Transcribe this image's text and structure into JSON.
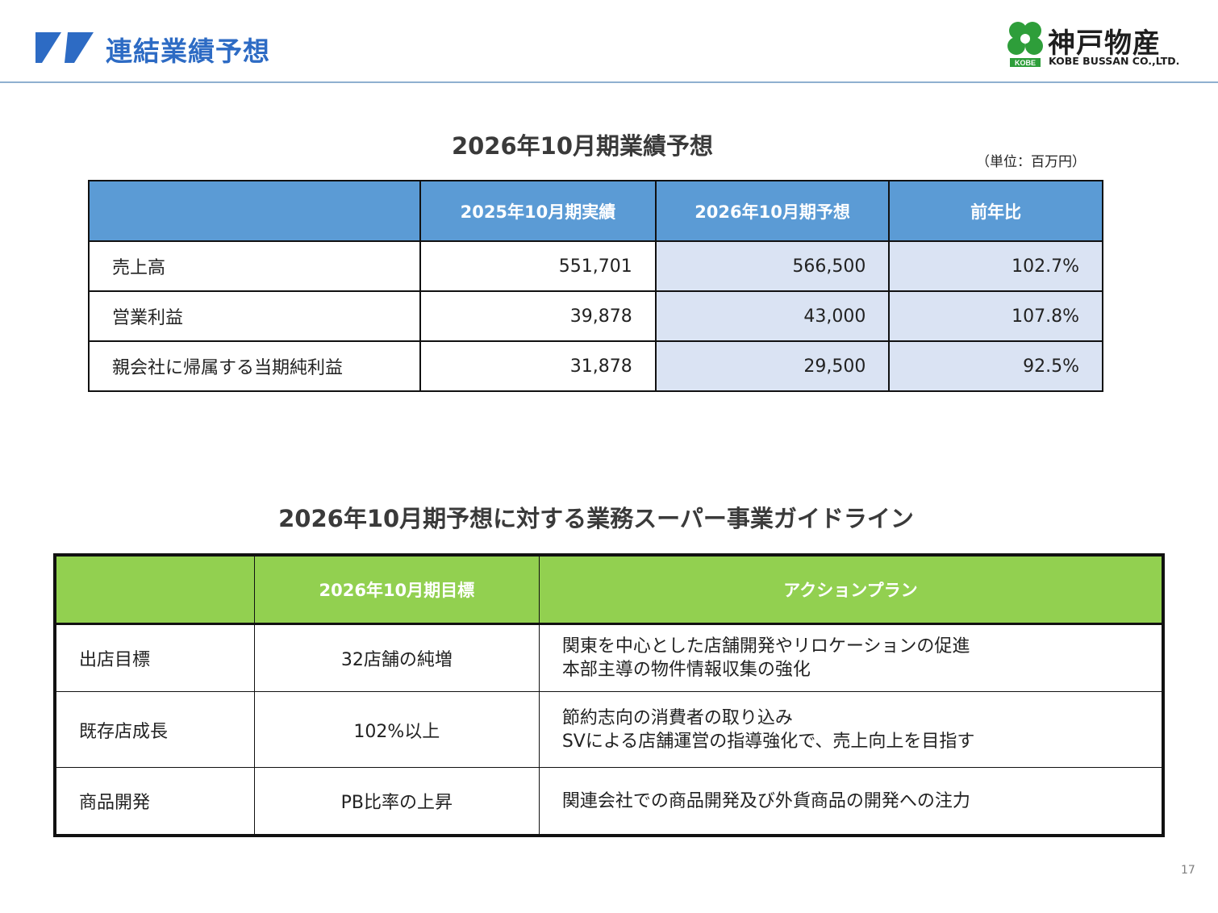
{
  "header": {
    "title": "連結業績予想",
    "logo_name_jp": "神戸物産",
    "logo_name_en": "KOBE BUSSAN CO.,LTD.",
    "logo_mark_text": "KOBE"
  },
  "forecast": {
    "title": "2026年10月期業績予想",
    "unit": "（単位：百万円）",
    "columns": [
      "",
      "2025年10月期実績",
      "2026年10月期予想",
      "前年比"
    ],
    "rows": [
      {
        "label": "売上高",
        "actual": "551,701",
        "forecast": "566,500",
        "yoy": "102.7%"
      },
      {
        "label": "営業利益",
        "actual": "39,878",
        "forecast": "43,000",
        "yoy": "107.8%"
      },
      {
        "label": "親会社に帰属する当期純利益",
        "actual": "31,878",
        "forecast": "29,500",
        "yoy": "92.5%"
      }
    ]
  },
  "guideline": {
    "title": "2026年10月期予想に対する業務スーパー事業ガイドライン",
    "columns": [
      "",
      "2026年10月期目標",
      "アクションプラン"
    ],
    "rows": [
      {
        "label": "出店目標",
        "target": "32店舗の純増",
        "plan": [
          "関東を中心とした店舗開発やリロケーションの促進",
          "本部主導の物件情報収集の強化"
        ]
      },
      {
        "label": "既存店成長",
        "target": "102%以上",
        "plan": [
          "節約志向の消費者の取り込み",
          "SVによる店舗運営の指導強化で、売上向上を目指す"
        ]
      },
      {
        "label": "商品開発",
        "target": "PB比率の上昇",
        "plan": [
          "関連会社での商品開発及び外貨商品の開発への注力"
        ]
      }
    ]
  },
  "page_number": "17",
  "colors": {
    "title_blue": "#2d6bc4",
    "table1_header": "#5b9bd5",
    "table1_shade": "#dae3f3",
    "table2_header": "#92d050",
    "logo_green": "#2e9e3a"
  }
}
